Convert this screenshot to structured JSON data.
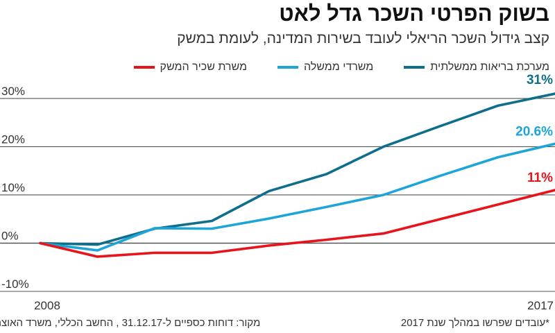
{
  "title": "בשוק הפרטי השכר גדל לאט",
  "subtitle": "קצב גידול השכר הריאלי לעובד בשירות המדינה, לעומת במשק",
  "footer": {
    "note": "*עובדים שפרשו במהלך שנת 2017",
    "source": "מקור: דוחות כספיים ל-31.12.17 , החשב הכללי, משרד האוצר"
  },
  "chart_data": {
    "type": "line",
    "x": [
      2008,
      2009,
      2010,
      2011,
      2012,
      2013,
      2014,
      2015,
      2016,
      2017
    ],
    "x_tick_labels": [
      "2008",
      "2017"
    ],
    "y_tick_labels": [
      "30%",
      "20%",
      "10%",
      "0%",
      "-10%"
    ],
    "y_ticks": [
      30,
      20,
      10,
      0,
      -10
    ],
    "ylim": [
      -10,
      31
    ],
    "grid": true,
    "legend_position": "top",
    "series": [
      {
        "name": "מערכת בריאות ממשלתית",
        "color": "#0e6e8c",
        "values": [
          0,
          -0.3,
          3,
          4.6,
          10.8,
          14.3,
          20,
          24.3,
          28.5,
          31
        ],
        "end_label": "31%"
      },
      {
        "name": "משרדי ממשלה",
        "color": "#1ea5d8",
        "values": [
          0,
          -1.5,
          3.1,
          3,
          5.1,
          7.5,
          10,
          14,
          17.8,
          20.6
        ],
        "end_label": "20.6%"
      },
      {
        "name": "משרת שכיר המשק",
        "color": "#e8141b",
        "values": [
          0,
          -2.8,
          -2,
          -2,
          -0.5,
          0.7,
          2,
          5,
          8,
          11
        ],
        "end_label": "11%"
      }
    ]
  }
}
